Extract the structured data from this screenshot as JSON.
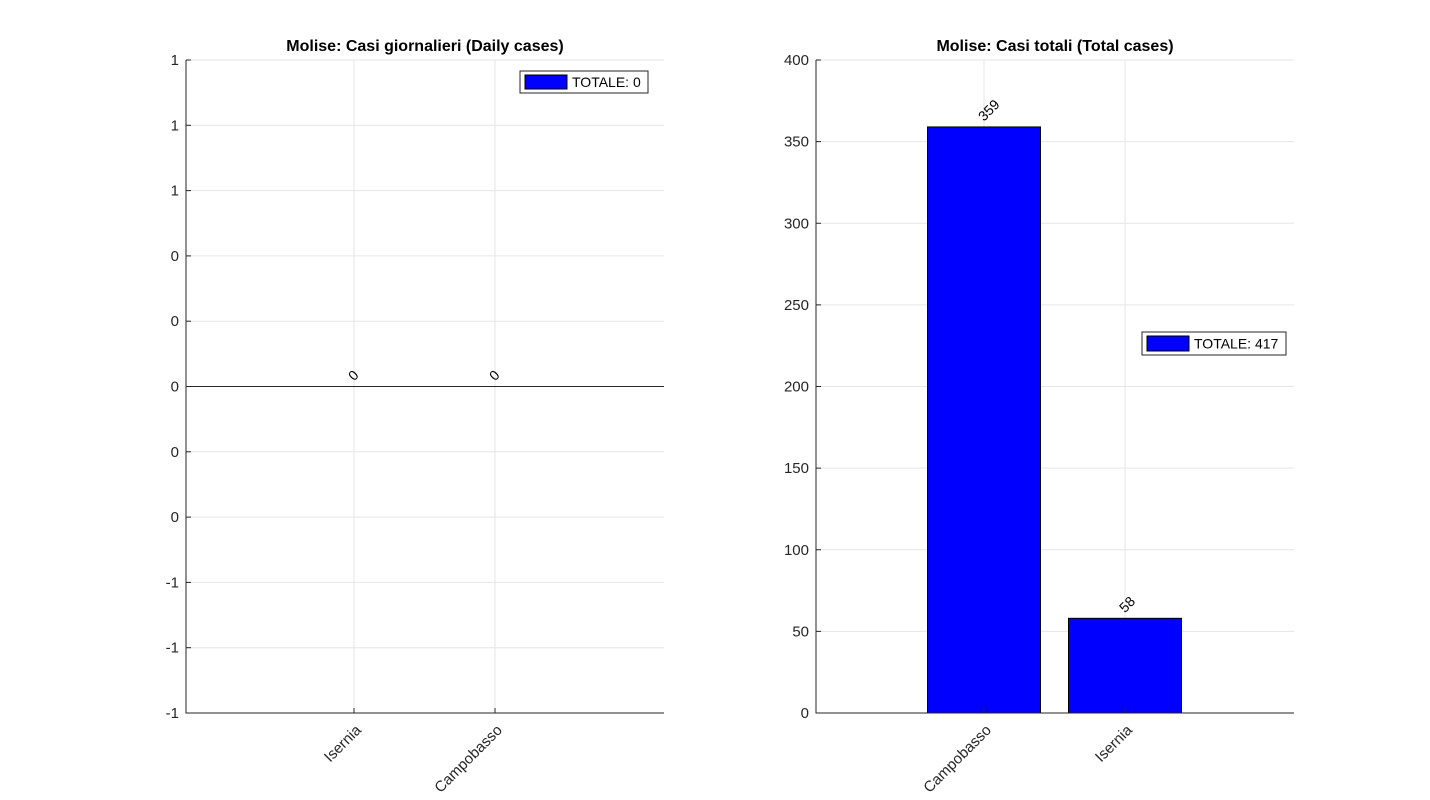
{
  "chart_data": [
    {
      "type": "bar",
      "title": "Molise: Casi giornalieri (Daily cases)",
      "categories": [
        "Isernia",
        "Campobasso"
      ],
      "values": [
        0,
        0
      ],
      "data_labels": [
        "0",
        "0"
      ],
      "ylim": [
        -1,
        1
      ],
      "y_ticks": [
        -1,
        -0.8,
        -0.6,
        -0.4,
        -0.2,
        0,
        0.2,
        0.4,
        0.6,
        0.8,
        1
      ],
      "y_tick_labels": [
        "-1",
        "-1",
        "-1",
        "0",
        "0",
        "0",
        "0",
        "0",
        "1",
        "1",
        "1"
      ],
      "legend": "TOTALE: 0",
      "legend_position": "top-right",
      "bar_color": "#0000ff",
      "grid": true
    },
    {
      "type": "bar",
      "title": "Molise: Casi totali (Total cases)",
      "categories": [
        "Campobasso",
        "Isernia"
      ],
      "values": [
        359,
        58
      ],
      "data_labels": [
        "359",
        "58"
      ],
      "ylim": [
        0,
        400
      ],
      "y_ticks": [
        0,
        50,
        100,
        150,
        200,
        250,
        300,
        350,
        400
      ],
      "y_tick_labels": [
        "0",
        "50",
        "100",
        "150",
        "200",
        "250",
        "300",
        "350",
        "400"
      ],
      "legend": "TOTALE: 417",
      "legend_position": "right",
      "bar_color": "#0000ff",
      "grid": true
    }
  ]
}
